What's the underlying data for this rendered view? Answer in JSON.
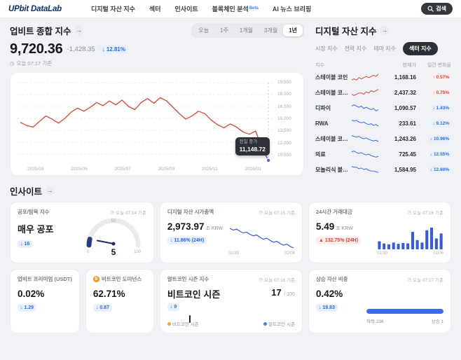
{
  "icons": {
    "arrow": "→",
    "clock": "◷"
  },
  "colors": {
    "up": "#d0493e",
    "down": "#2f6be4",
    "chart_line": "#d6453a",
    "chart_drop": "#3d6bff",
    "mini": "#3b5bd6"
  },
  "nav": {
    "logo": "UPbit DataLab",
    "items": [
      "디지털 자산 지수",
      "섹터",
      "인사이트",
      "블록체인 분석",
      "AI 뉴스 브리핑"
    ],
    "beta_badge": "Beta",
    "search_label": "검색"
  },
  "upbit_index": {
    "title": "업비트 종합 지수",
    "ranges": [
      "오늘",
      "1주",
      "1개월",
      "3개월",
      "1년"
    ],
    "active_range": "1년",
    "value": "9,720.36",
    "change_abs": "-1,428.35",
    "change_pct": "↓ 12.81%",
    "change_dir": "down",
    "as_of": "오늘 07:17 기준",
    "tooltip_label": "전일 종가",
    "tooltip_value": "11,148.72",
    "chart_data": {
      "type": "line",
      "x_labels": [
        "2025/03",
        "2025/05",
        "2025/07",
        "2025/09",
        "2025/11",
        "2026/01"
      ],
      "y_labels": [
        "19,500",
        "18,000",
        "16,500",
        "15,000",
        "13,500",
        "12,000",
        "10,500"
      ],
      "values": [
        14500,
        14100,
        13900,
        14600,
        15300,
        14900,
        14400,
        15000,
        15800,
        16300,
        15900,
        16400,
        17000,
        16600,
        17200,
        16700,
        17300,
        16500,
        16100,
        17000,
        17500,
        16900,
        17600,
        17200,
        16400,
        15600,
        14900,
        15300,
        15900,
        15600,
        14800,
        14200,
        13800,
        14300,
        13900,
        13300,
        13000,
        13400,
        11149,
        9720
      ]
    }
  },
  "digital_index": {
    "title": "디지털 자산 지수",
    "tabs": [
      "시장 지수",
      "전략 지수",
      "테마 지수",
      "섹터 지수"
    ],
    "active_tab": "섹터 지수",
    "columns": [
      "지수",
      "현재가",
      "일간 변화율"
    ],
    "rows": [
      {
        "name": "스테이블 코인",
        "value": "1,168.16",
        "change": "↑ 0.57%",
        "dir": "up",
        "spark": [
          4,
          5,
          4,
          6,
          5,
          6,
          7,
          6,
          7,
          8,
          7,
          9
        ]
      },
      {
        "name": "스테이블 코인 그룹",
        "value": "2,437.32",
        "change": "↑ 0.75%",
        "dir": "up",
        "spark": [
          5,
          4,
          5,
          6,
          6,
          5,
          7,
          6,
          8,
          7,
          8,
          9
        ]
      },
      {
        "name": "디파이",
        "value": "1,090.57",
        "change": "↓ 1.43%",
        "dir": "down",
        "spark": [
          6,
          7,
          6,
          5,
          6,
          4,
          5,
          4,
          3,
          4,
          2,
          3
        ]
      },
      {
        "name": "RWA",
        "value": "233.61",
        "change": "↓ 9.12%",
        "dir": "down",
        "spark": [
          8,
          7,
          8,
          6,
          5,
          6,
          4,
          3,
          4,
          2,
          3,
          1
        ]
      },
      {
        "name": "스테이블 코인 연관 ...",
        "value": "1,243.26",
        "change": "↓ 10.96%",
        "dir": "down",
        "spark": [
          9,
          8,
          7,
          8,
          6,
          5,
          6,
          4,
          3,
          2,
          3,
          1
        ]
      },
      {
        "name": "의료",
        "value": "725.45",
        "change": "↓ 12.55%",
        "dir": "down",
        "spark": [
          8,
          9,
          7,
          6,
          7,
          5,
          4,
          5,
          3,
          2,
          1,
          2
        ]
      },
      {
        "name": "모놀리식 블록체인",
        "value": "1,584.95",
        "change": "↓ 12.60%",
        "dir": "down",
        "spark": [
          9,
          8,
          8,
          6,
          7,
          5,
          6,
          4,
          3,
          3,
          2,
          1
        ]
      }
    ]
  },
  "insights": {
    "title": "인사이트",
    "fear_greed": {
      "title": "공포/탐욕 지수",
      "as_of": "오늘 07:14 기준",
      "status": "매우 공포",
      "value": "5",
      "change": "↓ 16",
      "dir": "down",
      "gauge_min": "0",
      "gauge_mid": "50",
      "gauge_max": "100"
    },
    "market_cap": {
      "title": "디지털 자산 시가총액",
      "as_of": "오늘 07:15 기준",
      "value": "2,973.97",
      "unit": "조 KRW",
      "change": "↓ 11.86% (24H)",
      "dir": "down",
      "chart_data": {
        "type": "line",
        "x_labels": [
          "01/30",
          "02/06"
        ],
        "values": [
          9.2,
          8.6,
          8.9,
          8.2,
          7.6,
          7.9,
          7.1,
          6.6,
          6.9,
          6.1,
          5.4,
          5.8,
          5.0,
          4.4,
          4.7,
          3.9,
          3.4,
          3.7,
          2.9,
          2.4
        ]
      }
    },
    "volume": {
      "title": "24시간 거래대금",
      "as_of": "오늘 07:16 기준",
      "value": "5.49",
      "unit": "조 KRW",
      "change": "▲ 132.75% (24H)",
      "dir": "up",
      "chart_data": {
        "type": "bar",
        "x_labels": [
          "01/30",
          "02/06"
        ],
        "values": [
          1.6,
          1.1,
          0.9,
          1.3,
          1.0,
          1.2,
          1.1,
          3.9,
          1.9,
          1.3,
          4.3,
          4.9,
          2.3,
          3.5
        ]
      }
    },
    "premium": {
      "title": "업비트 프리미엄 (USDT)",
      "value": "0.02%",
      "change": "↓ 1.29",
      "dir": "down"
    },
    "dominance": {
      "title": "비트코인 도미넌스",
      "icon_glyph": "B",
      "value": "62.71%",
      "change": "↓ 0.87",
      "dir": "down"
    },
    "alt_season": {
      "title": "알트코인 시즌 지수",
      "as_of": "오늘 07:16 기준",
      "status": "비트코인 시즌",
      "score": "17",
      "score_max": "/ 100",
      "change": "↓ 9",
      "dir": "down",
      "marker_pct": 17,
      "label_left": "비트코인 시즌",
      "label_right": "알트코인 시즌"
    },
    "rising_ratio": {
      "title": "상승 자산 비중",
      "as_of": "오늘 07:17 기준",
      "value": "0.42%",
      "change": "↓ 19.83",
      "dir": "down",
      "pct": 0.42,
      "label_left": "하락 236",
      "label_right": "상승 1"
    }
  }
}
